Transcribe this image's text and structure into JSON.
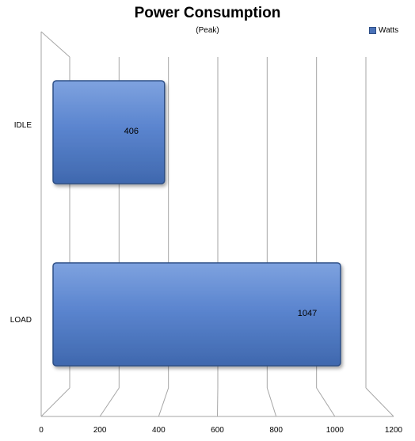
{
  "chart_data": {
    "type": "bar",
    "orientation": "horizontal",
    "title": "Power Consumption",
    "subtitle": "(Peak)",
    "categories": [
      "IDLE",
      "LOAD"
    ],
    "series": [
      {
        "name": "Watts",
        "values": [
          406,
          1047
        ]
      }
    ],
    "data_labels": [
      "406",
      "1047"
    ],
    "xlim": [
      0,
      1200
    ],
    "x_ticks": [
      0,
      200,
      400,
      600,
      800,
      1000,
      1200
    ],
    "x_tick_labels": [
      "0",
      "200",
      "400",
      "600",
      "800",
      "1000",
      "1200"
    ],
    "grid": true,
    "legend": "top-right",
    "colors": {
      "bar": "#4a72b8",
      "bar_edge": "#2f4f86",
      "grid": "#a6a6a6"
    }
  }
}
